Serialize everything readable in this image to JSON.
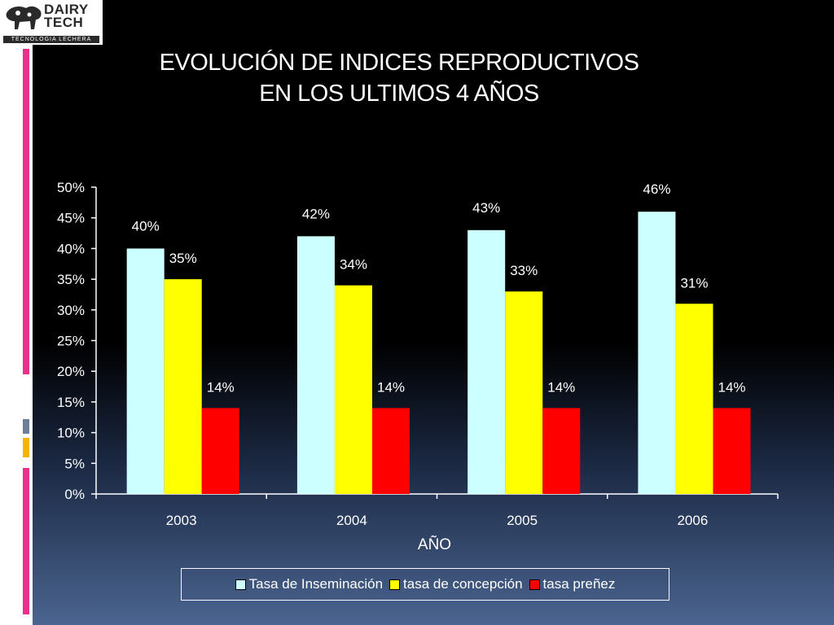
{
  "logo": {
    "name_line1": "DAIRY",
    "name_line2": "TECH",
    "tagline": "TECNOLOGIA LECHERA"
  },
  "slide": {
    "accent_colors": [
      "#e8318a",
      "#6f7f99",
      "#f4b400",
      "#8a8a8a"
    ]
  },
  "chart_data": {
    "type": "bar",
    "title_line1": "EVOLUCIÓN DE INDICES REPRODUCTIVOS",
    "title_line2": "EN LOS ULTIMOS 4 AÑOS",
    "xlabel": "AÑO",
    "ylabel": "",
    "categories": [
      "2003",
      "2004",
      "2005",
      "2006"
    ],
    "ylim": [
      0,
      50
    ],
    "yticks": [
      "0%",
      "5%",
      "10%",
      "15%",
      "20%",
      "25%",
      "30%",
      "35%",
      "40%",
      "45%",
      "50%"
    ],
    "series": [
      {
        "name": "Tasa de Inseminación",
        "color": "#ccffff",
        "values": [
          40,
          42,
          43,
          46
        ],
        "labels": [
          "40%",
          "42%",
          "43%",
          "46%"
        ]
      },
      {
        "name": "tasa de concepción",
        "color": "#ffff00",
        "values": [
          35,
          34,
          33,
          31
        ],
        "labels": [
          "35%",
          "34%",
          "33%",
          "31%"
        ]
      },
      {
        "name": "tasa preñez",
        "color": "#ff0000",
        "values": [
          14,
          14,
          14,
          14
        ],
        "labels": [
          "14%",
          "14%",
          "14%",
          "14%"
        ]
      }
    ],
    "legend_position": "bottom",
    "grid": false
  }
}
